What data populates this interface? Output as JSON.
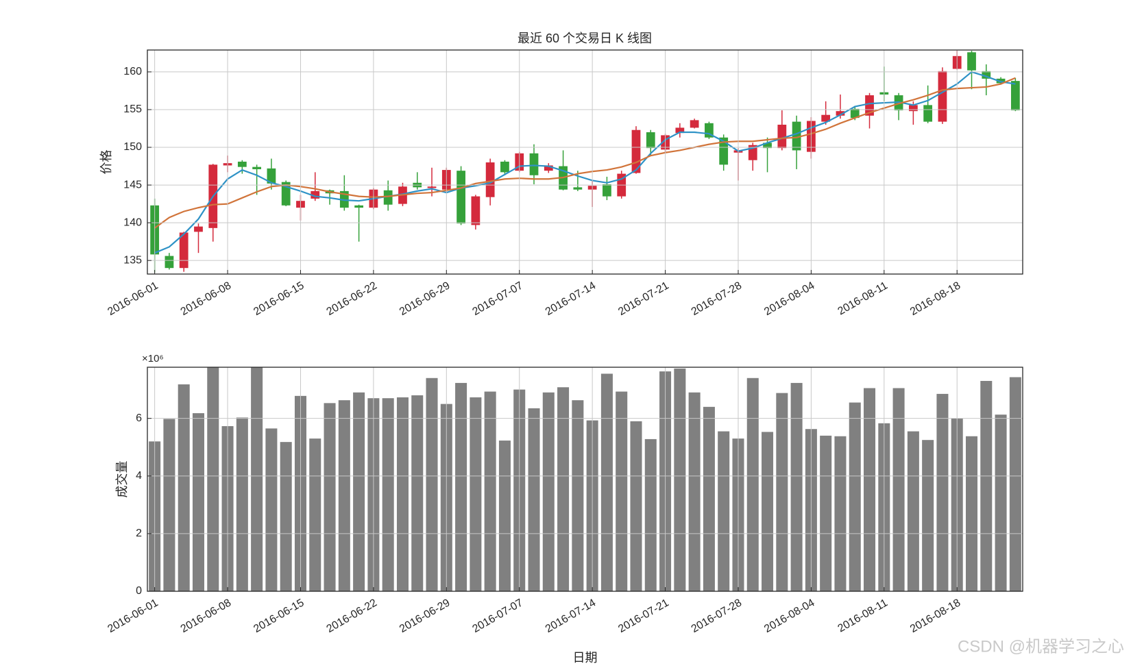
{
  "chart_data": [
    {
      "type": "candlestick",
      "title": "最近 60 个交易日 K 线图",
      "ylabel": "价格",
      "categories": [
        "2016-06-01",
        null,
        null,
        null,
        null,
        "2016-06-08",
        null,
        null,
        null,
        null,
        "2016-06-15",
        null,
        null,
        null,
        null,
        "2016-06-22",
        null,
        null,
        null,
        null,
        "2016-06-29",
        null,
        null,
        null,
        null,
        "2016-07-07",
        null,
        null,
        null,
        null,
        "2016-07-14",
        null,
        null,
        null,
        null,
        "2016-07-21",
        null,
        null,
        null,
        null,
        "2016-07-28",
        null,
        null,
        null,
        null,
        "2016-08-04",
        null,
        null,
        null,
        null,
        "2016-08-11",
        null,
        null,
        null,
        null,
        "2016-08-18",
        null,
        null,
        null,
        null
      ],
      "open": [
        142.3,
        135.6,
        134.0,
        138.8,
        139.3,
        147.6,
        148.1,
        147.4,
        147.2,
        145.4,
        142.0,
        143.2,
        144.3,
        144.2,
        142.3,
        142.0,
        144.3,
        142.5,
        145.3,
        144.6,
        144.4,
        146.9,
        139.7,
        143.4,
        148.1,
        146.9,
        149.2,
        146.9,
        147.5,
        144.7,
        144.4,
        145.1,
        143.5,
        146.6,
        152.0,
        149.7,
        151.9,
        152.6,
        153.2,
        151.3,
        149.3,
        148.3,
        150.6,
        149.9,
        153.4,
        149.4,
        153.4,
        154.2,
        155.1,
        154.2,
        157.3,
        156.9,
        154.8,
        155.6,
        153.4,
        160.4,
        162.6,
        160.1,
        159.1,
        158.8
      ],
      "high": [
        143.2,
        136.0,
        138.8,
        139.9,
        147.8,
        148.9,
        148.3,
        147.7,
        148.5,
        145.6,
        143.7,
        146.7,
        144.4,
        146.3,
        142.4,
        144.6,
        145.6,
        145.3,
        146.7,
        147.3,
        147.3,
        147.5,
        143.7,
        148.5,
        148.3,
        149.4,
        150.4,
        147.9,
        149.6,
        146.9,
        145.6,
        146.1,
        146.9,
        152.8,
        152.3,
        151.8,
        153.2,
        153.8,
        153.4,
        151.7,
        149.9,
        150.6,
        151.3,
        154.9,
        154.2,
        154.0,
        156.1,
        157.0,
        155.5,
        157.2,
        160.7,
        157.2,
        156.1,
        158.2,
        160.6,
        162.8,
        162.8,
        161.0,
        159.3,
        159.2
      ],
      "low": [
        133.4,
        133.8,
        133.5,
        136.0,
        137.5,
        146.7,
        146.5,
        143.7,
        144.4,
        142.2,
        140.3,
        142.9,
        142.4,
        141.6,
        137.5,
        141.8,
        141.6,
        142.2,
        144.4,
        143.5,
        144.1,
        139.7,
        139.1,
        142.3,
        146.3,
        146.7,
        145.1,
        146.6,
        144.3,
        144.2,
        142.1,
        143.0,
        143.2,
        146.5,
        149.0,
        149.2,
        151.3,
        152.5,
        151.1,
        146.9,
        145.6,
        146.9,
        146.7,
        149.6,
        147.1,
        148.5,
        153.0,
        153.8,
        153.6,
        152.5,
        156.1,
        153.6,
        153.0,
        153.2,
        153.1,
        160.3,
        157.7,
        156.9,
        158.3,
        154.8
      ],
      "close": [
        135.8,
        134.0,
        138.7,
        139.5,
        147.7,
        147.9,
        147.4,
        147.1,
        145.2,
        142.3,
        142.9,
        144.2,
        143.9,
        142.0,
        142.0,
        144.4,
        142.4,
        144.8,
        144.7,
        144.8,
        147.0,
        139.9,
        143.5,
        148.0,
        146.7,
        149.2,
        146.3,
        147.6,
        144.4,
        144.4,
        144.9,
        143.5,
        146.5,
        152.3,
        149.9,
        151.6,
        152.6,
        153.6,
        151.3,
        147.7,
        149.6,
        150.3,
        149.9,
        153.0,
        149.6,
        153.5,
        154.3,
        154.8,
        153.9,
        156.9,
        157.0,
        154.9,
        155.6,
        153.4,
        160.1,
        162.1,
        160.2,
        159.1,
        158.5,
        154.9
      ],
      "up_color": "#d42a3c",
      "down_color": "#35a13a",
      "lines": [
        {
          "color": "#2e92c6",
          "values": [
            136.0,
            136.8,
            138.5,
            140.5,
            143.5,
            145.8,
            147.0,
            146.3,
            145.3,
            144.8,
            144.2,
            143.5,
            143.3,
            143.0,
            142.9,
            143.2,
            143.5,
            143.8,
            144.2,
            144.5,
            144.0,
            144.6,
            144.9,
            145.3,
            146.4,
            147.5,
            147.6,
            147.5,
            146.9,
            146.2,
            145.6,
            145.3,
            145.8,
            147.0,
            149.2,
            151.0,
            152.0,
            152.0,
            151.8,
            150.8,
            149.5,
            149.9,
            150.6,
            151.2,
            151.8,
            152.6,
            153.3,
            154.3,
            155.4,
            155.8,
            155.9,
            156.0,
            155.6,
            156.2,
            157.3,
            158.4,
            160.0,
            159.4,
            158.7,
            158.4
          ]
        },
        {
          "color": "#d1743a",
          "values": [
            139.3,
            140.7,
            141.5,
            142.0,
            142.4,
            142.5,
            143.3,
            144.1,
            144.8,
            145.0,
            144.8,
            144.5,
            144.1,
            143.8,
            143.5,
            143.4,
            143.5,
            143.7,
            143.9,
            144.0,
            144.3,
            144.6,
            145.2,
            145.5,
            145.8,
            145.9,
            145.8,
            145.8,
            146.0,
            146.5,
            146.8,
            147.0,
            147.4,
            148.0,
            148.9,
            149.3,
            149.6,
            150.0,
            150.4,
            150.7,
            150.8,
            150.8,
            151.0,
            151.2,
            151.3,
            151.8,
            152.4,
            153.2,
            153.9,
            154.6,
            155.2,
            155.8,
            156.3,
            156.9,
            157.6,
            157.8,
            157.9,
            158.0,
            158.4,
            159.2
          ]
        }
      ],
      "ylim": [
        133.2,
        162.9
      ],
      "yticks": [
        135,
        140,
        145,
        150,
        155,
        160
      ],
      "grid": true
    },
    {
      "type": "bar",
      "ylabel": "成交量",
      "xlabel": "日期",
      "y_multiplier": "×10⁶",
      "categories": [
        "2016-06-01",
        null,
        null,
        null,
        null,
        "2016-06-08",
        null,
        null,
        null,
        null,
        "2016-06-15",
        null,
        null,
        null,
        null,
        "2016-06-22",
        null,
        null,
        null,
        null,
        "2016-06-29",
        null,
        null,
        null,
        null,
        "2016-07-07",
        null,
        null,
        null,
        null,
        "2016-07-14",
        null,
        null,
        null,
        null,
        "2016-07-21",
        null,
        null,
        null,
        null,
        "2016-07-28",
        null,
        null,
        null,
        null,
        "2016-08-04",
        null,
        null,
        null,
        null,
        "2016-08-11",
        null,
        null,
        null,
        null,
        "2016-08-18",
        null,
        null,
        null,
        null
      ],
      "values": [
        5.2,
        5.98,
        7.18,
        6.18,
        7.85,
        5.73,
        6.03,
        7.85,
        5.65,
        5.18,
        6.78,
        5.3,
        6.53,
        6.63,
        6.9,
        6.7,
        6.7,
        6.73,
        6.8,
        7.4,
        6.5,
        7.23,
        6.73,
        6.93,
        5.23,
        7.0,
        6.35,
        6.9,
        7.08,
        6.63,
        5.93,
        7.55,
        6.93,
        5.9,
        5.28,
        7.63,
        7.73,
        6.9,
        6.4,
        5.55,
        5.3,
        7.4,
        5.53,
        6.88,
        7.23,
        5.63,
        5.4,
        5.38,
        6.55,
        7.05,
        5.83,
        7.05,
        5.55,
        5.25,
        6.85,
        6.0,
        5.38,
        7.3,
        6.13,
        7.43
      ],
      "color": "#808080",
      "ylim": [
        0,
        7.775
      ],
      "yticks": [
        0,
        2,
        4,
        6
      ],
      "grid": true
    }
  ],
  "watermark": "CSDN @机器学习之心"
}
